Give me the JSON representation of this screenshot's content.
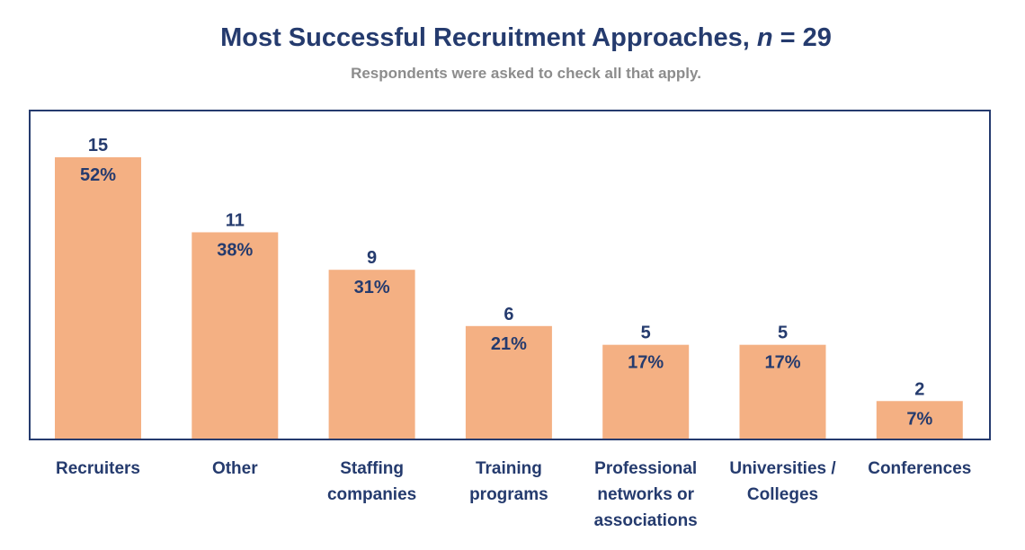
{
  "chart_data": {
    "type": "bar",
    "title_main": "Most Successful Recruitment Approaches, ",
    "title_n_symbol": "n",
    "title_n_value": " = 29",
    "subtitle": "Respondents were asked to check all that apply.",
    "categories": [
      [
        "Recruiters"
      ],
      [
        "Other"
      ],
      [
        "Staffing",
        "companies"
      ],
      [
        "Training",
        "programs"
      ],
      [
        "Professional",
        "networks or",
        "associations"
      ],
      [
        "Universities /",
        "Colleges"
      ],
      [
        "Conferences"
      ]
    ],
    "values": [
      15,
      11,
      9,
      6,
      5,
      5,
      2
    ],
    "percent_labels": [
      "52%",
      "38%",
      "31%",
      "21%",
      "17%",
      "17%",
      "7%"
    ],
    "ylim": [
      0,
      15
    ],
    "colors": {
      "bar": "#f4b083",
      "text": "#253b6e",
      "subtitle": "#8c8c8c"
    }
  }
}
